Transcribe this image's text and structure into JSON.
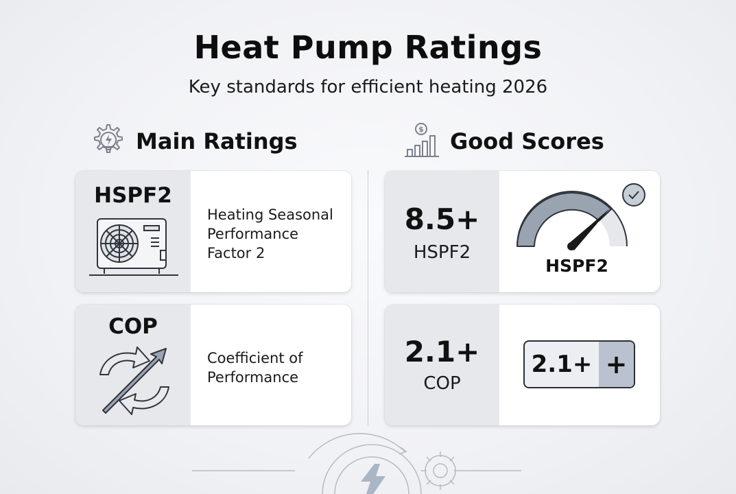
{
  "header": {
    "title": "Heat Pump Ratings",
    "subtitle": "Key standards for efficient heating 2026"
  },
  "sections": {
    "main": {
      "label": "Main Ratings",
      "icon": "gear-lightbulb-icon"
    },
    "good": {
      "label": "Good Scores",
      "icon": "dollar-bar-chart-icon"
    }
  },
  "ratings": [
    {
      "term": "HSPF2",
      "description_lines": [
        "Heating Seasonal",
        "Performance",
        "Factor 2"
      ],
      "icon": "outdoor-ac-unit-icon"
    },
    {
      "term": "COP",
      "description_lines": [
        "Coefficient of",
        "Performance"
      ],
      "icon": "cycle-arrows-icon"
    }
  ],
  "scores": [
    {
      "value": "8.5+",
      "unit": "HSPF2",
      "visual_label": "HSPF2",
      "visual": "gauge-icon",
      "status_icon": "check-circle-icon"
    },
    {
      "value": "2.1+",
      "unit": "COP",
      "badge_text": "2.1+",
      "badge_plus": "+"
    }
  ],
  "colors": {
    "panel": "#e6e8ec",
    "accent": "#b9c2ce",
    "text": "#111111"
  }
}
